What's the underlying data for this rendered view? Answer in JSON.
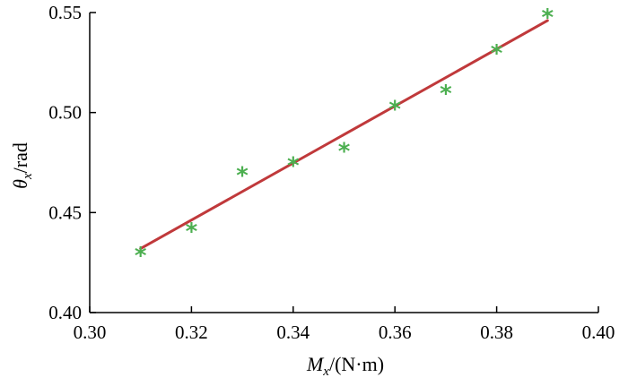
{
  "chart_data": {
    "type": "scatter",
    "x_label": {
      "var": "M",
      "sub": "x",
      "unit": "/(N·m)"
    },
    "y_label": {
      "var": "θ",
      "sub": "x",
      "unit": "/rad"
    },
    "xlim": [
      0.3,
      0.4
    ],
    "ylim": [
      0.4,
      0.55
    ],
    "x_ticks": [
      "0.30",
      "0.32",
      "0.34",
      "0.36",
      "0.38",
      "0.40"
    ],
    "y_ticks": [
      "0.40",
      "0.45",
      "0.50",
      "0.55"
    ],
    "grid": false,
    "series": [
      {
        "kind": "scatter",
        "marker": "*",
        "color": "#4caf50",
        "x": [
          0.31,
          0.32,
          0.33,
          0.34,
          0.35,
          0.36,
          0.37,
          0.38,
          0.39
        ],
        "y": [
          0.431,
          0.443,
          0.471,
          0.476,
          0.483,
          0.504,
          0.512,
          0.532,
          0.55
        ]
      },
      {
        "kind": "line",
        "color": "#c0393b",
        "x": [
          0.31,
          0.39
        ],
        "y": [
          0.432,
          0.546
        ]
      }
    ]
  }
}
